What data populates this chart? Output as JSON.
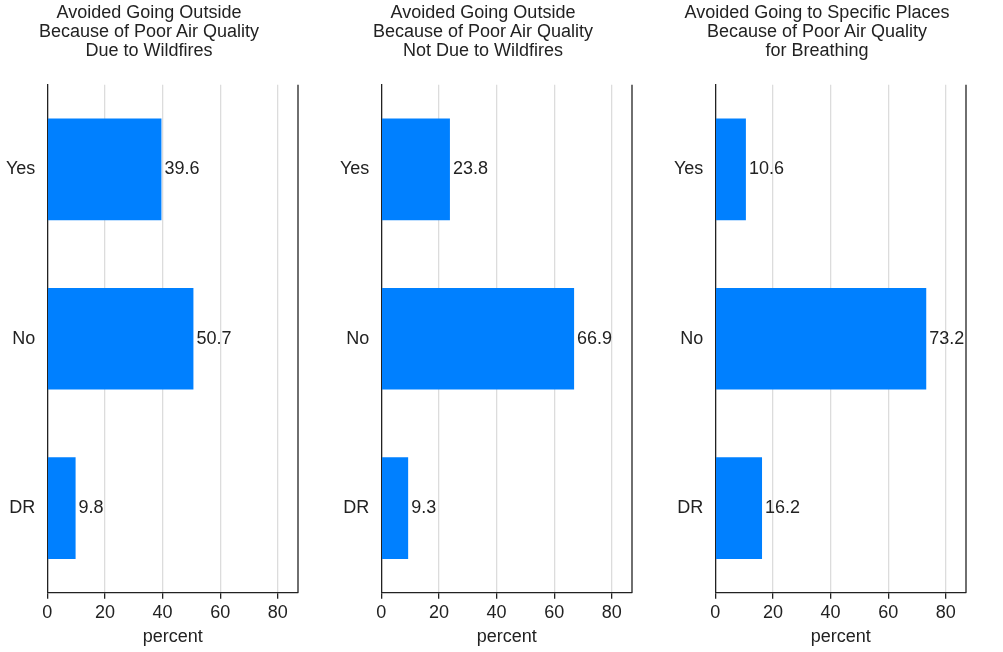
{
  "chart_data": [
    {
      "type": "bar",
      "orientation": "horizontal",
      "title": "Avoided Going Outside\nBecause of Poor Air Quality\nDue to Wildfires",
      "xlabel": "percent",
      "categories": [
        "Yes",
        "No",
        "DR"
      ],
      "values": [
        39.6,
        50.7,
        9.8
      ],
      "color": "#0080ff",
      "xlim": [
        0,
        87
      ],
      "xticks": [
        0,
        20,
        40,
        60,
        80
      ],
      "grid": "x",
      "data_labels": true,
      "legend": false
    },
    {
      "type": "bar",
      "orientation": "horizontal",
      "title": "Avoided Going Outside\nBecause of Poor Air Quality\nNot Due to Wildfires",
      "xlabel": "percent",
      "categories": [
        "Yes",
        "No",
        "DR"
      ],
      "values": [
        23.8,
        66.9,
        9.3
      ],
      "color": "#0080ff",
      "xlim": [
        0,
        87
      ],
      "xticks": [
        0,
        20,
        40,
        60,
        80
      ],
      "grid": "x",
      "data_labels": true,
      "legend": false
    },
    {
      "type": "bar",
      "orientation": "horizontal",
      "title": "Avoided Going to Specific Places\nBecause of Poor Air Quality\nfor Breathing",
      "xlabel": "percent",
      "categories": [
        "Yes",
        "No",
        "DR"
      ],
      "values": [
        10.6,
        73.2,
        16.2
      ],
      "color": "#0080ff",
      "xlim": [
        0,
        87
      ],
      "xticks": [
        0,
        20,
        40,
        60,
        80
      ],
      "grid": "x",
      "data_labels": true,
      "legend": false
    }
  ]
}
